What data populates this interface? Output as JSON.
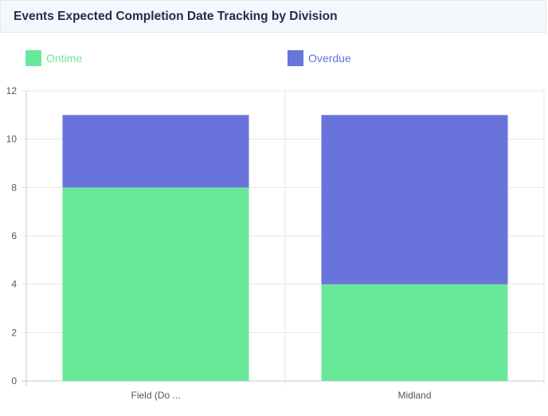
{
  "card": {
    "title": "Events Expected Completion Date Tracking by Division"
  },
  "legend": [
    {
      "label": "Ontime",
      "color": "#69e89a"
    },
    {
      "label": "Overdue",
      "color": "#6873dc"
    }
  ],
  "chart_data": {
    "type": "bar",
    "stacked": true,
    "categories": [
      "Field (Do ...",
      "Midland"
    ],
    "series": [
      {
        "name": "Ontime",
        "values": [
          8,
          4
        ],
        "color": "#69e89a"
      },
      {
        "name": "Overdue",
        "values": [
          3,
          7
        ],
        "color": "#6873dc"
      }
    ],
    "ylim": [
      0,
      12
    ],
    "yticks": [
      0,
      2,
      4,
      6,
      8,
      10,
      12
    ],
    "grid": true,
    "legend_position": "top-left"
  }
}
